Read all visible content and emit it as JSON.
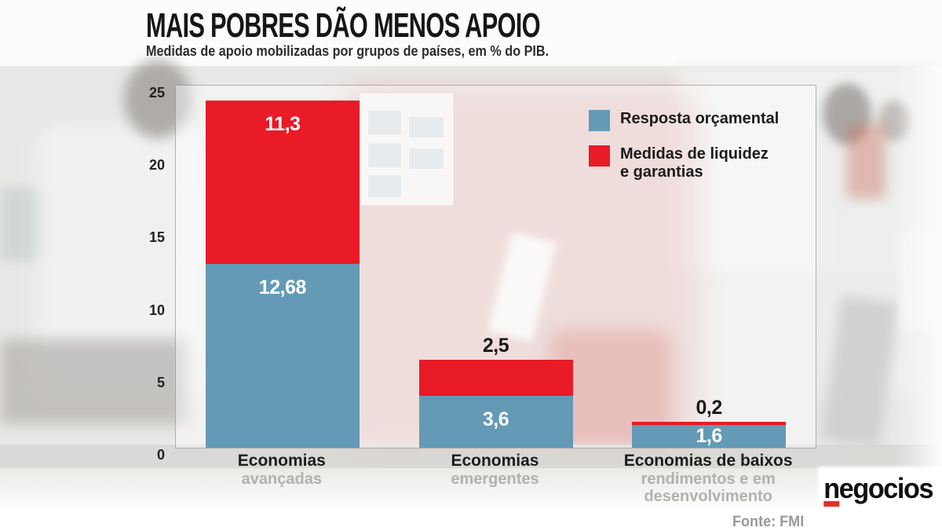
{
  "header": {
    "title": "MAIS POBRES DÃO MENOS APOIO",
    "subtitle": "Medidas de apoio mobilizadas por grupos de países, em % do PIB."
  },
  "legend": {
    "items": [
      {
        "label": "Resposta orçamental",
        "color": "#649ab6"
      },
      {
        "label": "Medidas de liquidez e garantias",
        "color": "#e81b27"
      }
    ]
  },
  "chart_data": {
    "type": "bar",
    "stacked": true,
    "title": "MAIS POBRES DÃO MENOS APOIO",
    "subtitle": "Medidas de apoio mobilizadas por grupos de países, em % do PIB.",
    "unit": "% do PIB",
    "ylim": [
      0,
      25
    ],
    "yticks": [
      25,
      20,
      15,
      10,
      5,
      0
    ],
    "grid": false,
    "legend_position": "inside-top-right",
    "categories": [
      "Economias avançadas",
      "Economias emergentes",
      "Economias de baixos rendimentos e em desenvolvimento"
    ],
    "category_labels": [
      {
        "main": "Economias",
        "sub": "avançadas"
      },
      {
        "main": "Economias",
        "sub": "emergentes"
      },
      {
        "main": "Economias de baixos",
        "sub": "rendimentos e em desenvolvimento"
      }
    ],
    "series": [
      {
        "name": "Resposta orçamental",
        "color": "#649ab6",
        "values": [
          12.68,
          3.6,
          1.6
        ],
        "value_labels": [
          "12,68",
          "3,6",
          "1,6"
        ],
        "label_positions": [
          "inside",
          "inside",
          "inside"
        ]
      },
      {
        "name": "Medidas de liquidez e garantias",
        "color": "#e81b27",
        "values": [
          11.3,
          2.5,
          0.2
        ],
        "value_labels": [
          "11,3",
          "2,5",
          "0,2"
        ],
        "label_positions": [
          "inside",
          "above",
          "above"
        ]
      }
    ],
    "source": "Fonte: FMI"
  },
  "branding": {
    "logo_text": "negocios"
  }
}
